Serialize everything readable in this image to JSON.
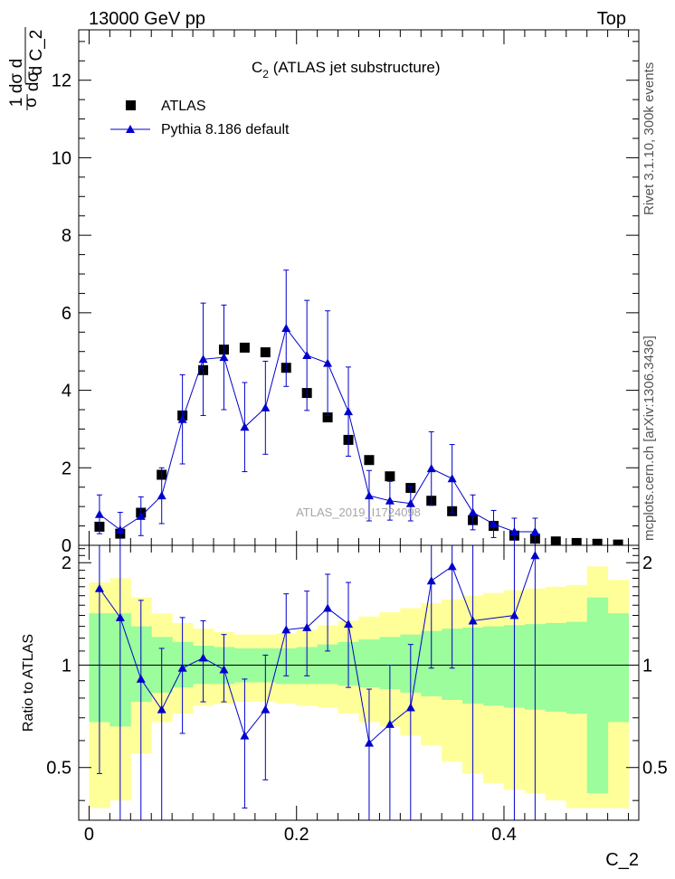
{
  "header": {
    "energy": "13000 GeV pp",
    "process": "Top"
  },
  "side_labels": {
    "rivet": "Rivet 3.1.10,  300k events",
    "source": "mcplots.cern.ch [arXiv:1306.3436]"
  },
  "watermark": "ATLAS_2019_I1724098",
  "chart_data": [
    {
      "type": "scatter",
      "panel": "main",
      "title_main": "C",
      "title_sub": "2",
      "title_rest": " (ATLAS jet substructure)",
      "ylabel": "1/σ dσ/d C_2",
      "ylabel_parts": {
        "frac1_num": "1",
        "frac1_den": "σ",
        "d": "d",
        "frac2_num": "dσ",
        "frac2_den": "d C_2"
      },
      "xlim": [
        -0.01,
        0.53
      ],
      "ylim": [
        0,
        13.3
      ],
      "yticks": [
        0,
        2,
        4,
        6,
        8,
        10,
        12
      ],
      "grid": false,
      "legend_position": "top-left",
      "series": [
        {
          "name": "ATLAS",
          "marker": "square",
          "color": "#000000",
          "x": [
            0.01,
            0.03,
            0.05,
            0.07,
            0.09,
            0.11,
            0.13,
            0.15,
            0.17,
            0.19,
            0.21,
            0.23,
            0.25,
            0.27,
            0.29,
            0.31,
            0.33,
            0.35,
            0.37,
            0.39,
            0.41,
            0.43,
            0.45,
            0.47,
            0.49,
            0.51
          ],
          "y": [
            0.48,
            0.3,
            0.84,
            1.82,
            3.35,
            4.52,
            5.05,
            5.1,
            4.98,
            4.58,
            3.93,
            3.3,
            2.72,
            2.2,
            1.78,
            1.48,
            1.15,
            0.88,
            0.65,
            0.5,
            0.25,
            0.17,
            0.1,
            0.06,
            0.04,
            0.02
          ]
        },
        {
          "name": "Pythia 8.186 default",
          "marker": "triangle",
          "color": "#0000cc",
          "x": [
            0.01,
            0.03,
            0.05,
            0.07,
            0.09,
            0.11,
            0.13,
            0.15,
            0.17,
            0.19,
            0.21,
            0.23,
            0.25,
            0.27,
            0.29,
            0.31,
            0.33,
            0.35,
            0.37,
            0.39,
            0.41,
            0.43
          ],
          "y": [
            0.8,
            0.4,
            0.75,
            1.28,
            3.25,
            4.8,
            4.85,
            3.05,
            3.55,
            5.6,
            4.9,
            4.7,
            3.45,
            1.28,
            1.15,
            1.08,
            1.98,
            1.72,
            0.85,
            0.55,
            0.35,
            0.35
          ],
          "err": [
            0.5,
            0.45,
            0.5,
            0.72,
            1.15,
            1.45,
            1.35,
            1.15,
            1.2,
            1.5,
            1.42,
            1.35,
            1.15,
            0.65,
            0.5,
            0.45,
            0.95,
            0.88,
            0.45,
            0.35,
            0.35,
            0.35
          ]
        }
      ]
    },
    {
      "type": "line",
      "panel": "ratio",
      "ylabel": "Ratio to ATLAS",
      "xlabel": "C_2",
      "xlim": [
        -0.01,
        0.53
      ],
      "ylim": [
        0.35,
        2.25
      ],
      "yticks": [
        0.5,
        1,
        2
      ],
      "xticks": [
        0,
        0.2,
        0.4
      ],
      "reference": 1,
      "bands": {
        "bin_edges": [
          0.0,
          0.02,
          0.04,
          0.06,
          0.08,
          0.1,
          0.12,
          0.14,
          0.16,
          0.18,
          0.2,
          0.22,
          0.24,
          0.26,
          0.28,
          0.3,
          0.32,
          0.34,
          0.36,
          0.38,
          0.4,
          0.42,
          0.44,
          0.46,
          0.48,
          0.5,
          0.52
        ],
        "stat_lo": [
          0.68,
          0.66,
          0.78,
          0.83,
          0.86,
          0.88,
          0.88,
          0.89,
          0.89,
          0.88,
          0.88,
          0.88,
          0.87,
          0.86,
          0.85,
          0.83,
          0.81,
          0.79,
          0.77,
          0.76,
          0.75,
          0.74,
          0.73,
          0.72,
          0.42,
          0.68
        ],
        "stat_hi": [
          1.42,
          1.42,
          1.3,
          1.21,
          1.17,
          1.14,
          1.13,
          1.12,
          1.12,
          1.12,
          1.13,
          1.15,
          1.17,
          1.19,
          1.21,
          1.23,
          1.26,
          1.28,
          1.29,
          1.3,
          1.31,
          1.32,
          1.33,
          1.34,
          1.58,
          1.42
        ],
        "total_lo": [
          0.38,
          0.4,
          0.55,
          0.68,
          0.72,
          0.76,
          0.77,
          0.78,
          0.78,
          0.77,
          0.76,
          0.75,
          0.72,
          0.68,
          0.66,
          0.62,
          0.58,
          0.52,
          0.48,
          0.45,
          0.43,
          0.42,
          0.4,
          0.38,
          0.38,
          0.38
        ],
        "total_hi": [
          1.75,
          1.8,
          1.58,
          1.42,
          1.33,
          1.28,
          1.25,
          1.23,
          1.23,
          1.24,
          1.27,
          1.31,
          1.35,
          1.39,
          1.43,
          1.47,
          1.52,
          1.56,
          1.6,
          1.63,
          1.66,
          1.68,
          1.7,
          1.72,
          1.95,
          1.78
        ],
        "stat_color": "#9bfd9b",
        "total_color": "#ffff9a"
      },
      "series": [
        {
          "name": "Pythia 8.186 default",
          "color": "#0000cc",
          "x": [
            0.01,
            0.03,
            0.05,
            0.07,
            0.09,
            0.11,
            0.13,
            0.15,
            0.17,
            0.19,
            0.21,
            0.23,
            0.25,
            0.27,
            0.29,
            0.31,
            0.33,
            0.35,
            0.37,
            0.41,
            0.43
          ],
          "y": [
            1.68,
            1.38,
            0.91,
            0.74,
            0.98,
            1.05,
            0.97,
            0.62,
            0.74,
            1.27,
            1.29,
            1.47,
            1.32,
            0.59,
            0.67,
            0.75,
            1.77,
            1.95,
            1.35,
            1.4,
            2.1
          ],
          "lo": [
            0.48,
            0.35,
            0.35,
            0.35,
            0.63,
            0.78,
            0.78,
            0.38,
            0.46,
            0.93,
            0.93,
            1.1,
            0.86,
            0.35,
            0.35,
            0.35,
            0.98,
            0.98,
            0.35,
            0.35,
            0.35
          ],
          "hi": [
            2.25,
            2.25,
            1.55,
            1.12,
            1.38,
            1.35,
            1.23,
            0.91,
            1.07,
            1.62,
            1.65,
            1.85,
            1.75,
            0.85,
            1.0,
            1.15,
            2.25,
            2.25,
            2.25,
            2.25,
            2.25
          ]
        }
      ]
    }
  ]
}
